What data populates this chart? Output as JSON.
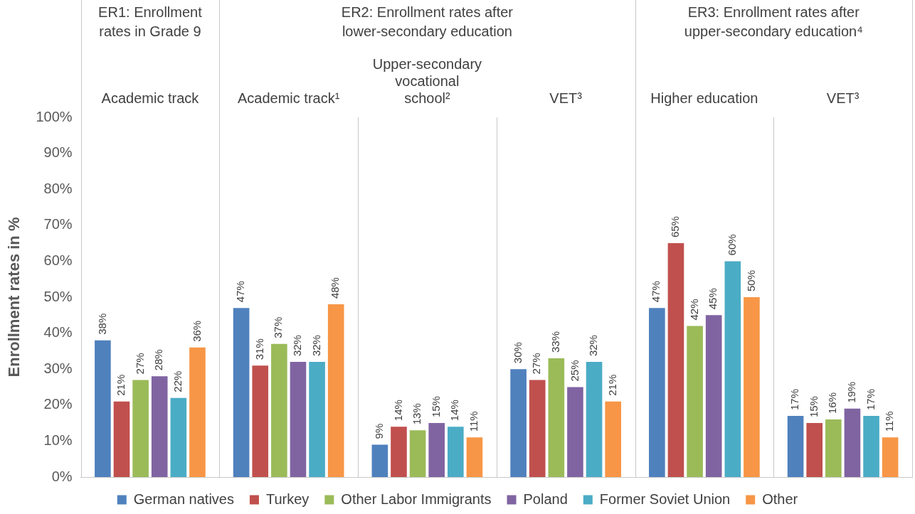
{
  "chart_data": {
    "type": "bar",
    "ylabel": "Enrollment rates in %",
    "annotations": [
      "ER1: Enrollment rates in Grade 9",
      "ER2: Enrollment rates after lower-secondary education",
      "ER3: Enrollment rates after upper-secondary education⁴"
    ],
    "categories": [
      "Academic track",
      "Academic track¹",
      "Upper-secondary vocational school²",
      "VET³",
      "Higher education",
      "VET³"
    ],
    "ylim": [
      0,
      100
    ],
    "yticks": [
      {
        "value": 0,
        "label": "0%"
      },
      {
        "value": 10,
        "label": "10%"
      },
      {
        "value": 20,
        "label": "20%"
      },
      {
        "value": 30,
        "label": "30%"
      },
      {
        "value": 40,
        "label": "40%"
      },
      {
        "value": 50,
        "label": "50%"
      },
      {
        "value": 60,
        "label": "60%"
      },
      {
        "value": 70,
        "label": "70%"
      },
      {
        "value": 80,
        "label": "80%"
      },
      {
        "value": 90,
        "label": "90%"
      },
      {
        "value": 100,
        "label": "100%"
      }
    ],
    "legend": "bottom",
    "grid": false,
    "series": [
      {
        "name": "German natives",
        "color": "#4f81bd",
        "values": [
          38,
          47,
          9,
          30,
          47,
          17
        ],
        "value_labels": [
          "38%",
          "47%",
          "9%",
          "30%",
          "47%",
          "17%"
        ]
      },
      {
        "name": "Turkey",
        "color": "#c0504d",
        "values": [
          21,
          31,
          14,
          27,
          65,
          15
        ],
        "value_labels": [
          "21%",
          "31%",
          "14%",
          "27%",
          "65%",
          "15%"
        ]
      },
      {
        "name": "Other Labor Immigrants",
        "color": "#9bbb59",
        "values": [
          27,
          37,
          13,
          33,
          42,
          16
        ],
        "value_labels": [
          "27%",
          "37%",
          "13%",
          "33%",
          "42%",
          "16%"
        ]
      },
      {
        "name": "Poland",
        "color": "#8064a2",
        "values": [
          28,
          32,
          15,
          25,
          45,
          19
        ],
        "value_labels": [
          "28%",
          "32%",
          "15%",
          "25%",
          "45%",
          "19%"
        ]
      },
      {
        "name": "Former Soviet Union",
        "color": "#4bacc6",
        "values": [
          22,
          32,
          14,
          32,
          60,
          17
        ],
        "value_labels": [
          "22%",
          "32%",
          "14%",
          "32%",
          "60%",
          "17%"
        ]
      },
      {
        "name": "Other",
        "color": "#f79646",
        "values": [
          36,
          48,
          11,
          21,
          50,
          11
        ],
        "value_labels": [
          "36%",
          "48%",
          "11%",
          "21%",
          "50%",
          "11%"
        ]
      }
    ]
  }
}
